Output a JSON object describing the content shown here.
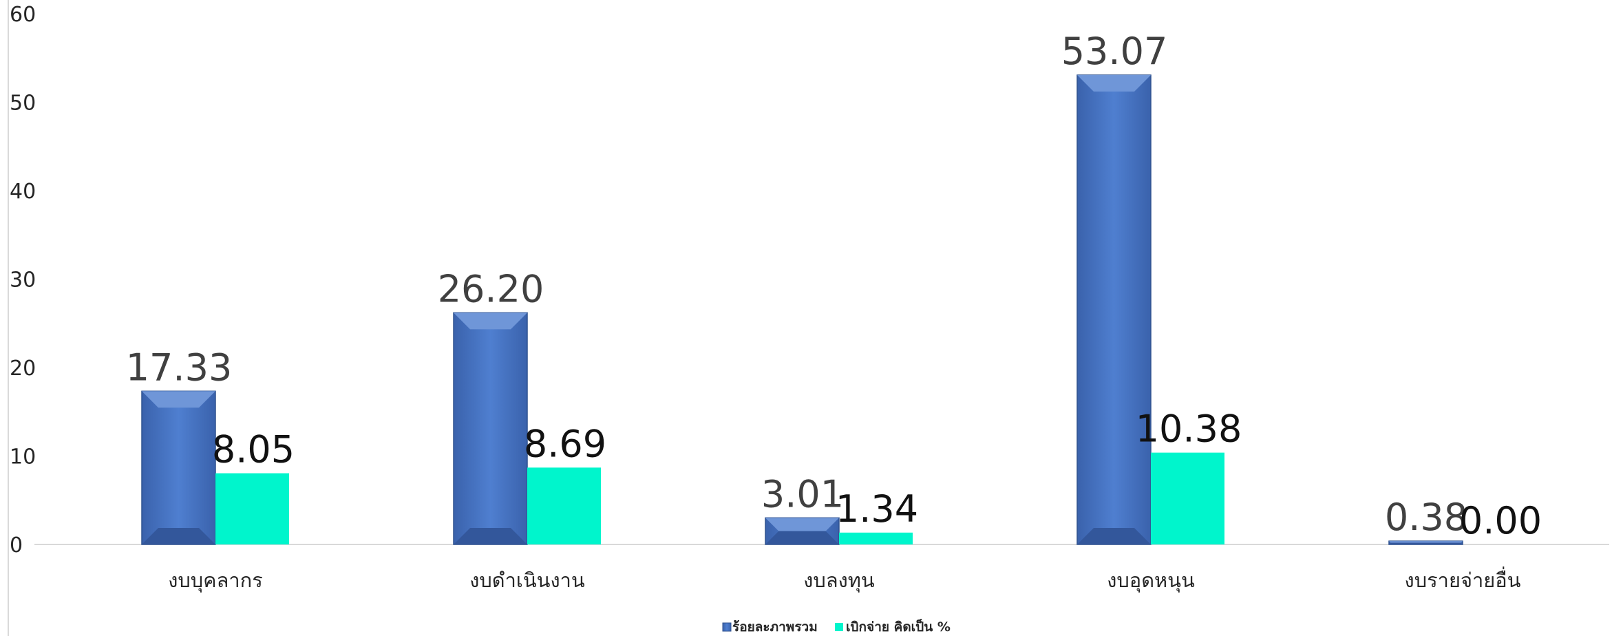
{
  "chart_data": {
    "type": "bar",
    "categories": [
      "งบบุคลากร",
      "งบดำเนินงาน",
      "งบลงทุน",
      "งบอุดหนุน",
      "งบรายจ่ายอื่น"
    ],
    "series": [
      {
        "name": "ร้อยละภาพรวม",
        "values": [
          17.33,
          26.2,
          3.01,
          53.07,
          0.38
        ],
        "labels": [
          "17.33",
          "26.20",
          "3.01",
          "53.07",
          "0.38"
        ],
        "color": "#4472c4"
      },
      {
        "name": "เบิกจ่าย คิดเป็น %",
        "values": [
          8.05,
          8.69,
          1.34,
          10.38,
          0.0
        ],
        "labels": [
          "8.05",
          "8.69",
          "1.34",
          "10.38",
          "0.00"
        ],
        "color": "#00f5cc"
      }
    ],
    "ylim": [
      0,
      60
    ],
    "yticks": [
      "0",
      "10",
      "20",
      "30",
      "40",
      "50",
      "60"
    ],
    "grid": false,
    "legend": "bottom-center",
    "title": "",
    "xlabel": "",
    "ylabel": ""
  }
}
